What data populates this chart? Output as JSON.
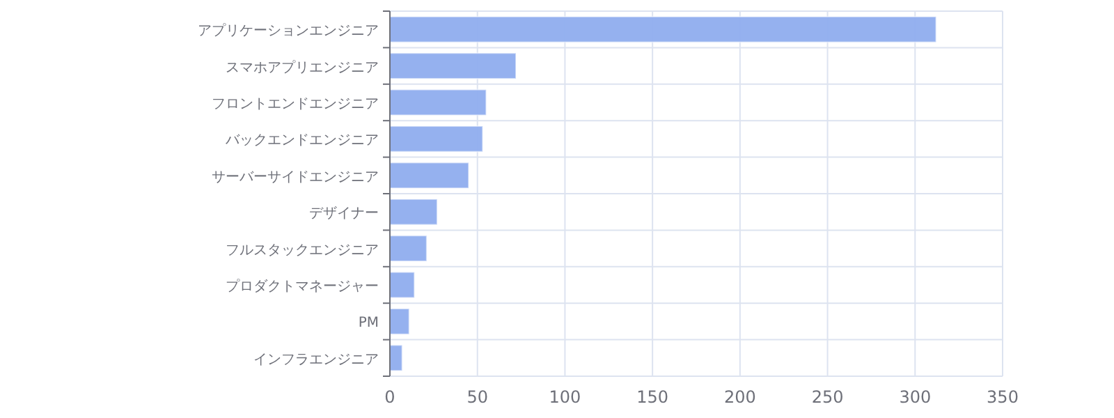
{
  "chart_data": {
    "type": "bar",
    "orientation": "horizontal",
    "categories": [
      "アプリケーションエンジニア",
      "スマホアプリエンジニア",
      "フロントエンドエンジニア",
      "バックエンドエンジニア",
      "サーバーサイドエンジニア",
      "デザイナー",
      "フルスタックエンジニア",
      "プロダクトマネージャー",
      "PM",
      "インフラエンジニア"
    ],
    "values": [
      312,
      72,
      55,
      53,
      45,
      27,
      21,
      14,
      11,
      7
    ],
    "color": "#8fadee",
    "xlim": [
      0,
      350
    ],
    "xticks": [
      0,
      50,
      100,
      150,
      200,
      250,
      300,
      350
    ],
    "grid": true
  }
}
